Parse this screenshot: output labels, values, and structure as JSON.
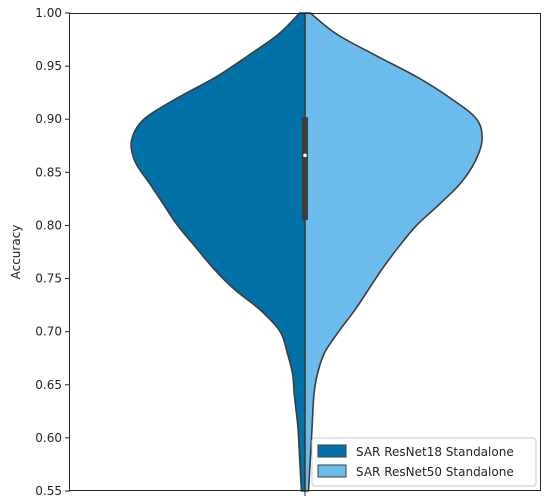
{
  "chart_data": {
    "type": "violin",
    "ylabel": "Accuracy",
    "ylim": [
      0.55,
      1.0
    ],
    "yticks": [
      "0.55",
      "0.60",
      "0.65",
      "0.70",
      "0.75",
      "0.80",
      "0.85",
      "0.90",
      "0.95",
      "1.00"
    ],
    "split": true,
    "legend_position": "lower-right",
    "series": [
      {
        "name": "SAR ResNet18 Standalone",
        "color": "#0072a8",
        "side": "left",
        "density_profile": [
          [
            0.55,
            0.02
          ],
          [
            0.58,
            0.03
          ],
          [
            0.61,
            0.04
          ],
          [
            0.64,
            0.06
          ],
          [
            0.66,
            0.07
          ],
          [
            0.68,
            0.1
          ],
          [
            0.7,
            0.14
          ],
          [
            0.72,
            0.25
          ],
          [
            0.74,
            0.4
          ],
          [
            0.76,
            0.52
          ],
          [
            0.78,
            0.62
          ],
          [
            0.8,
            0.72
          ],
          [
            0.82,
            0.8
          ],
          [
            0.84,
            0.88
          ],
          [
            0.86,
            0.96
          ],
          [
            0.88,
            0.98
          ],
          [
            0.9,
            0.91
          ],
          [
            0.92,
            0.72
          ],
          [
            0.94,
            0.5
          ],
          [
            0.96,
            0.32
          ],
          [
            0.98,
            0.15
          ],
          [
            1.0,
            0.03
          ]
        ]
      },
      {
        "name": "SAR ResNet50 Standalone",
        "color": "#6bbbec",
        "side": "right",
        "density_profile": [
          [
            0.55,
            0.02
          ],
          [
            0.58,
            0.03
          ],
          [
            0.61,
            0.04
          ],
          [
            0.64,
            0.05
          ],
          [
            0.66,
            0.07
          ],
          [
            0.68,
            0.11
          ],
          [
            0.7,
            0.19
          ],
          [
            0.72,
            0.28
          ],
          [
            0.74,
            0.36
          ],
          [
            0.76,
            0.44
          ],
          [
            0.78,
            0.53
          ],
          [
            0.8,
            0.63
          ],
          [
            0.82,
            0.76
          ],
          [
            0.84,
            0.88
          ],
          [
            0.86,
            0.96
          ],
          [
            0.88,
            1.0
          ],
          [
            0.9,
            0.97
          ],
          [
            0.92,
            0.82
          ],
          [
            0.94,
            0.63
          ],
          [
            0.96,
            0.4
          ],
          [
            0.98,
            0.18
          ],
          [
            1.0,
            0.03
          ]
        ]
      }
    ],
    "box": {
      "q1": 0.805,
      "median": 0.866,
      "q3": 0.902
    }
  }
}
